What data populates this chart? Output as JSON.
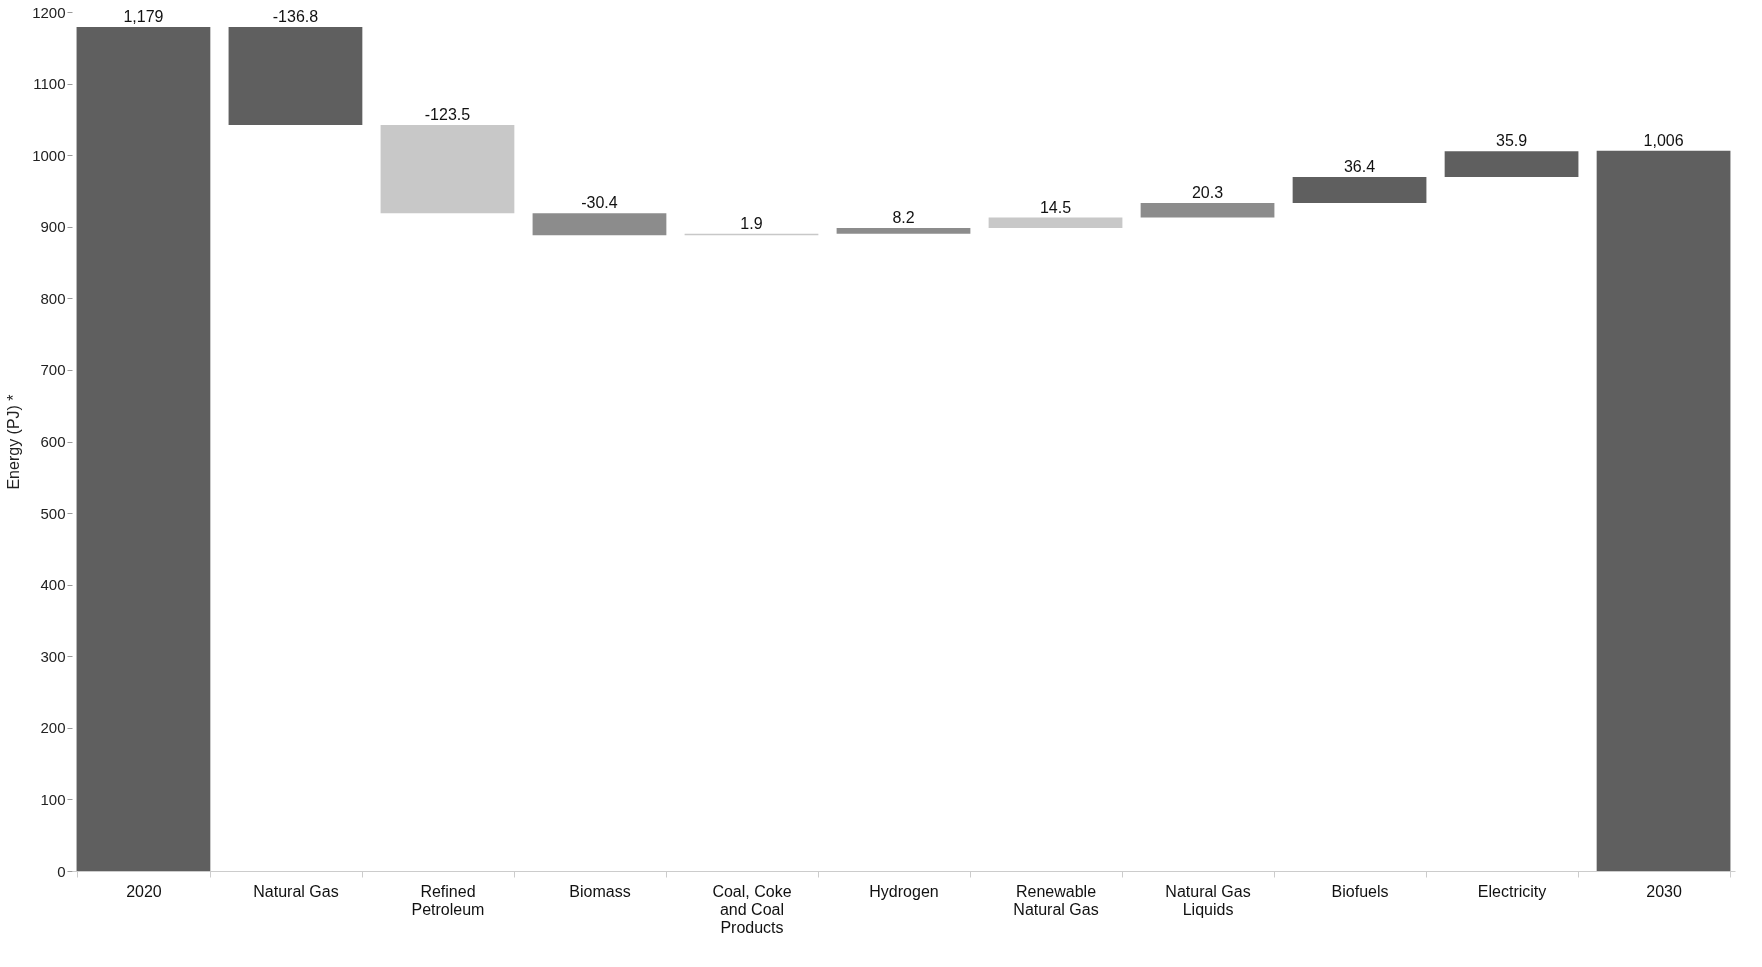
{
  "chart_data": {
    "type": "bar",
    "ylabel": "Energy (PJ) *",
    "categories": [
      "2020",
      "Natural Gas",
      "Refined Petroleum",
      "Biomass",
      "Coal, Coke and Coal Products",
      "Hydrogen",
      "Renewable Natural Gas",
      "Natural Gas Liquids",
      "Biofuels",
      "Electricity",
      "2030"
    ],
    "values": [
      1179,
      -136.8,
      -123.5,
      -30.4,
      1.9,
      8.2,
      14.5,
      20.3,
      36.4,
      35.9,
      1006
    ],
    "base": [
      0,
      1179,
      1042.2,
      918.7,
      888.3,
      890.2,
      898.4,
      912.9,
      933.2,
      969.6,
      0
    ],
    "colors": [
      "#5f5f5f",
      "#5f5f5f",
      "#c8c8c8",
      "#8c8c8c",
      "#c8c8c8",
      "#8c8c8c",
      "#c8c8c8",
      "#8c8c8c",
      "#5f5f5f",
      "#5f5f5f",
      "#5f5f5f"
    ],
    "value_labels": [
      "1,179",
      "-136.8",
      "-123.5",
      "-30.4",
      "1.9",
      "8.2",
      "14.5",
      "20.3",
      "36.4",
      "35.9",
      "1,006"
    ],
    "ylim": [
      0,
      1200
    ],
    "yticks": [
      0,
      100,
      200,
      300,
      400,
      500,
      600,
      700,
      800,
      900,
      1000,
      1100,
      1200
    ],
    "grid": false
  }
}
